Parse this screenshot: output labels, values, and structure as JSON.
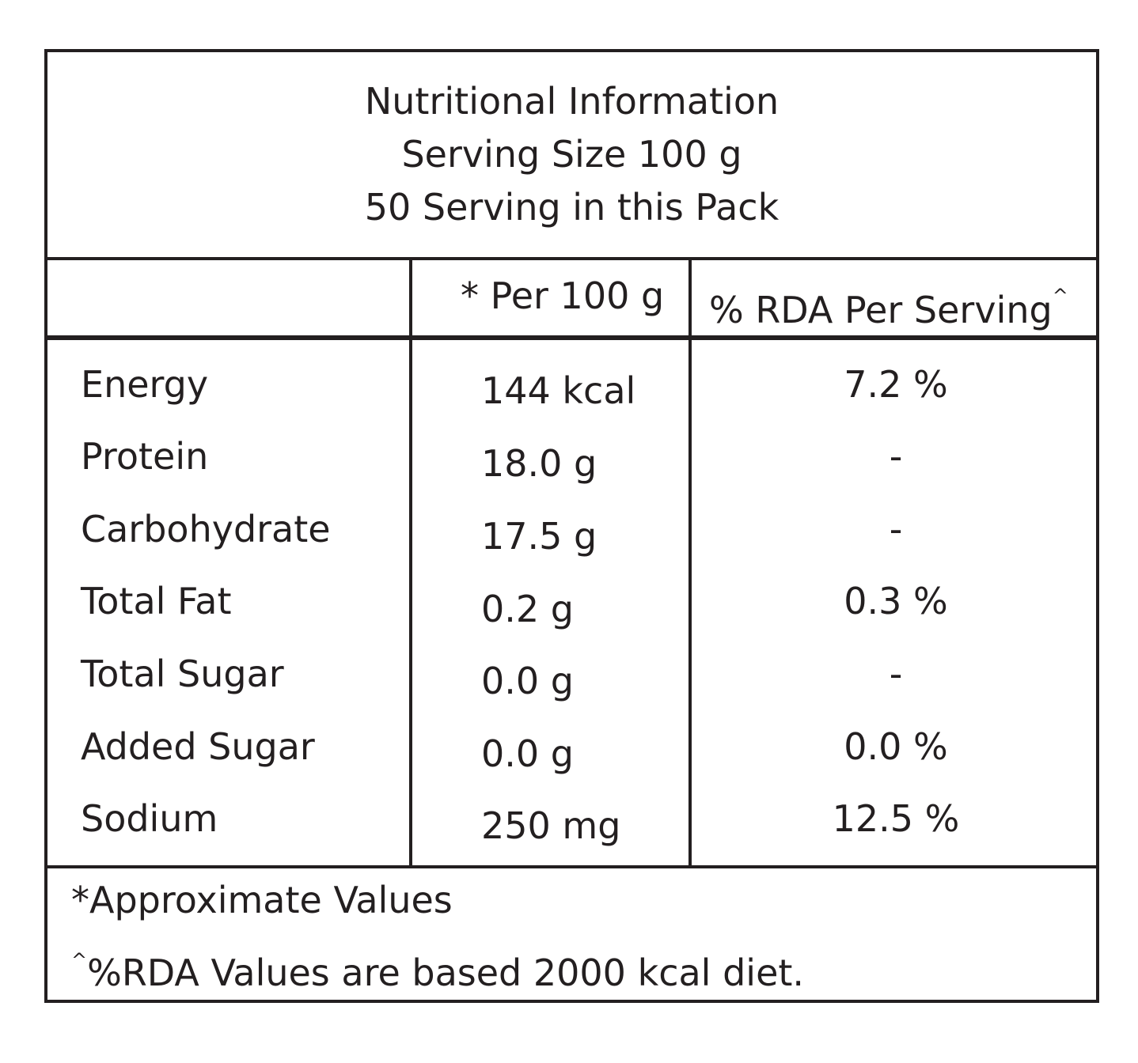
{
  "header": {
    "title": "Nutritional Information",
    "serving_size": "Serving Size 100 g",
    "servings_per_pack": "50 Serving in this Pack"
  },
  "columns": {
    "per_100g": "* Per 100 g",
    "rda": "% RDA Per Serving",
    "rda_marker": "^"
  },
  "rows": [
    {
      "name": "Energy",
      "amount": "144 kcal",
      "rda": "7.2 %"
    },
    {
      "name": "Protein",
      "amount": "18.0 g",
      "rda": "-"
    },
    {
      "name": "Carbohydrate",
      "amount": "17.5 g",
      "rda": "-"
    },
    {
      "name": "Total Fat",
      "amount": "0.2 g",
      "rda": "0.3 %"
    },
    {
      "name": "Total Sugar",
      "amount": "0.0 g",
      "rda": "-"
    },
    {
      "name": "Added Sugar",
      "amount": "0.0 g",
      "rda": "0.0 %"
    },
    {
      "name": "Sodium",
      "amount": "250 mg",
      "rda": "12.5 %"
    }
  ],
  "footnotes": {
    "approximate": "*Approximate Values",
    "rda_marker": "^",
    "rda_basis": "%RDA Values are based 2000 kcal diet."
  }
}
